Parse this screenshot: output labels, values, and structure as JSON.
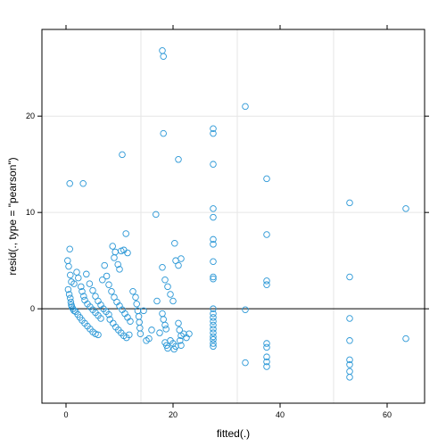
{
  "chart_data": {
    "type": "scatter",
    "xlabel": "fitted(.)",
    "ylabel": "resid(., type = \"pearson\")",
    "xlim": [
      -4.5,
      67
    ],
    "ylim": [
      -9.8,
      29
    ],
    "grid": true,
    "xticks": [
      0,
      20,
      40,
      60
    ],
    "yticks": [
      0,
      10,
      20
    ],
    "xtick_labels": [
      "0",
      "20",
      "40",
      "60"
    ],
    "ytick_labels": [
      "0",
      "10",
      "20"
    ],
    "ref_lines": {
      "vertical": [
        14,
        32,
        50
      ],
      "horizontal": [
        10,
        20
      ]
    },
    "hline_value": 0,
    "colors": {
      "points": "#2a97d6",
      "zero_line": "#000000",
      "grid": "#e6e6e6",
      "frame": "#000000"
    },
    "points": [
      [
        0.3,
        5
      ],
      [
        0.5,
        4.4
      ],
      [
        0.7,
        6.2
      ],
      [
        0.8,
        3.5
      ],
      [
        1,
        2.8
      ],
      [
        0.4,
        2
      ],
      [
        0.6,
        1.5
      ],
      [
        0.8,
        1.1
      ],
      [
        0.9,
        0.7
      ],
      [
        1,
        0.4
      ],
      [
        1.1,
        0.2
      ],
      [
        1.3,
        0
      ],
      [
        1.5,
        -0.2
      ],
      [
        0.7,
        13
      ],
      [
        3.2,
        13
      ],
      [
        10.5,
        16
      ],
      [
        1.5,
        2.6
      ],
      [
        2,
        3.8
      ],
      [
        2.3,
        3.2
      ],
      [
        2.8,
        2.3
      ],
      [
        3,
        1.8
      ],
      [
        3.3,
        1.3
      ],
      [
        3.5,
        0.9
      ],
      [
        4,
        0.5
      ],
      [
        4.5,
        0.2
      ],
      [
        5,
        -0.1
      ],
      [
        5.5,
        -0.4
      ],
      [
        6,
        -0.7
      ],
      [
        6.5,
        -1
      ],
      [
        1.8,
        -0.3
      ],
      [
        2.2,
        -0.6
      ],
      [
        2.6,
        -0.9
      ],
      [
        3,
        -1.2
      ],
      [
        3.5,
        -1.5
      ],
      [
        4,
        -1.8
      ],
      [
        4.5,
        -2.1
      ],
      [
        5,
        -2.4
      ],
      [
        5.5,
        -2.6
      ],
      [
        6,
        -2.7
      ],
      [
        3.8,
        3.6
      ],
      [
        4.4,
        2.6
      ],
      [
        5,
        1.9
      ],
      [
        5.5,
        1.3
      ],
      [
        6,
        0.8
      ],
      [
        6.5,
        0.4
      ],
      [
        7,
        0
      ],
      [
        7.5,
        -0.3
      ],
      [
        8,
        -0.6
      ],
      [
        6.8,
        3
      ],
      [
        7.2,
        4.5
      ],
      [
        7.6,
        3.4
      ],
      [
        8,
        2.5
      ],
      [
        8.5,
        1.8
      ],
      [
        9,
        1.2
      ],
      [
        9.5,
        0.7
      ],
      [
        10,
        0.3
      ],
      [
        10.5,
        -0.1
      ],
      [
        11,
        -0.5
      ],
      [
        11.5,
        -0.9
      ],
      [
        12,
        -1.3
      ],
      [
        8.7,
        6.5
      ],
      [
        9.2,
        5.9
      ],
      [
        9.7,
        4.6
      ],
      [
        10.3,
        6
      ],
      [
        10.8,
        6.1
      ],
      [
        11.2,
        7.8
      ],
      [
        11.5,
        5.8
      ],
      [
        10,
        4.1
      ],
      [
        9,
        5.3
      ],
      [
        8.2,
        -1.1
      ],
      [
        8.8,
        -1.5
      ],
      [
        9.3,
        -1.9
      ],
      [
        9.8,
        -2.2
      ],
      [
        10.3,
        -2.5
      ],
      [
        10.8,
        -2.8
      ],
      [
        11.3,
        -3
      ],
      [
        11.8,
        -2.7
      ],
      [
        12.5,
        1.8
      ],
      [
        13,
        1.2
      ],
      [
        13.2,
        0.5
      ],
      [
        13.4,
        -0.2
      ],
      [
        13.6,
        -0.8
      ],
      [
        13.7,
        -1.4
      ],
      [
        13.8,
        -2
      ],
      [
        13.9,
        -2.6
      ],
      [
        14.5,
        -0.2
      ],
      [
        15,
        -3.3
      ],
      [
        15.5,
        -3.1
      ],
      [
        16,
        -2.2
      ],
      [
        17,
        0.8
      ],
      [
        17.5,
        -2.5
      ],
      [
        16.8,
        9.8
      ],
      [
        18,
        26.8
      ],
      [
        18.2,
        26.2
      ],
      [
        18.2,
        18.2
      ],
      [
        21,
        15.5
      ],
      [
        18,
        4.3
      ],
      [
        18.5,
        3
      ],
      [
        19,
        2.3
      ],
      [
        19.5,
        1.5
      ],
      [
        20,
        0.8
      ],
      [
        20.3,
        6.8
      ],
      [
        20.5,
        5
      ],
      [
        21,
        4.5
      ],
      [
        21.5,
        5.2
      ],
      [
        18,
        -0.5
      ],
      [
        18.2,
        -1.1
      ],
      [
        18.5,
        -1.7
      ],
      [
        18.7,
        -2.1
      ],
      [
        18.5,
        -3.5
      ],
      [
        18.8,
        -3.8
      ],
      [
        19,
        -4.1
      ],
      [
        19.5,
        -3.3
      ],
      [
        20,
        -3.6
      ],
      [
        20.2,
        -4.2
      ],
      [
        20.5,
        -3.9
      ],
      [
        21,
        -1.5
      ],
      [
        21.2,
        -2.2
      ],
      [
        21.5,
        -2.8
      ],
      [
        21.3,
        -3.3
      ],
      [
        21.5,
        -3.8
      ],
      [
        22,
        -2.6
      ],
      [
        22.5,
        -3
      ],
      [
        23,
        -2.6
      ],
      [
        27.5,
        18.7
      ],
      [
        27.5,
        18.2
      ],
      [
        27.5,
        15
      ],
      [
        27.5,
        10.4
      ],
      [
        27.5,
        9.5
      ],
      [
        27.5,
        7.2
      ],
      [
        27.5,
        6.7
      ],
      [
        27.5,
        4.9
      ],
      [
        27.5,
        3.3
      ],
      [
        27.5,
        3.1
      ],
      [
        27.5,
        0
      ],
      [
        27.5,
        -0.5
      ],
      [
        27.5,
        -0.9
      ],
      [
        27.5,
        -1.3
      ],
      [
        27.5,
        -1.7
      ],
      [
        27.5,
        -2.1
      ],
      [
        27.5,
        -2.5
      ],
      [
        27.5,
        -2.9
      ],
      [
        27.5,
        -3.2
      ],
      [
        27.5,
        -3.6
      ],
      [
        27.5,
        -3.9
      ],
      [
        33.5,
        21
      ],
      [
        33.5,
        -0.1
      ],
      [
        33.5,
        -5.6
      ],
      [
        37.5,
        13.5
      ],
      [
        37.5,
        7.7
      ],
      [
        37.5,
        2.9
      ],
      [
        37.5,
        2.5
      ],
      [
        37.5,
        -3.6
      ],
      [
        37.5,
        -4
      ],
      [
        37.5,
        -5
      ],
      [
        37.5,
        -5.5
      ],
      [
        37.5,
        -6
      ],
      [
        53,
        11
      ],
      [
        53,
        3.3
      ],
      [
        53,
        -1
      ],
      [
        53,
        -3.3
      ],
      [
        53,
        -5.3
      ],
      [
        53,
        -5.8
      ],
      [
        53,
        -6.5
      ],
      [
        53,
        -7.1
      ],
      [
        63.5,
        10.4
      ],
      [
        63.5,
        -3.1
      ]
    ]
  }
}
